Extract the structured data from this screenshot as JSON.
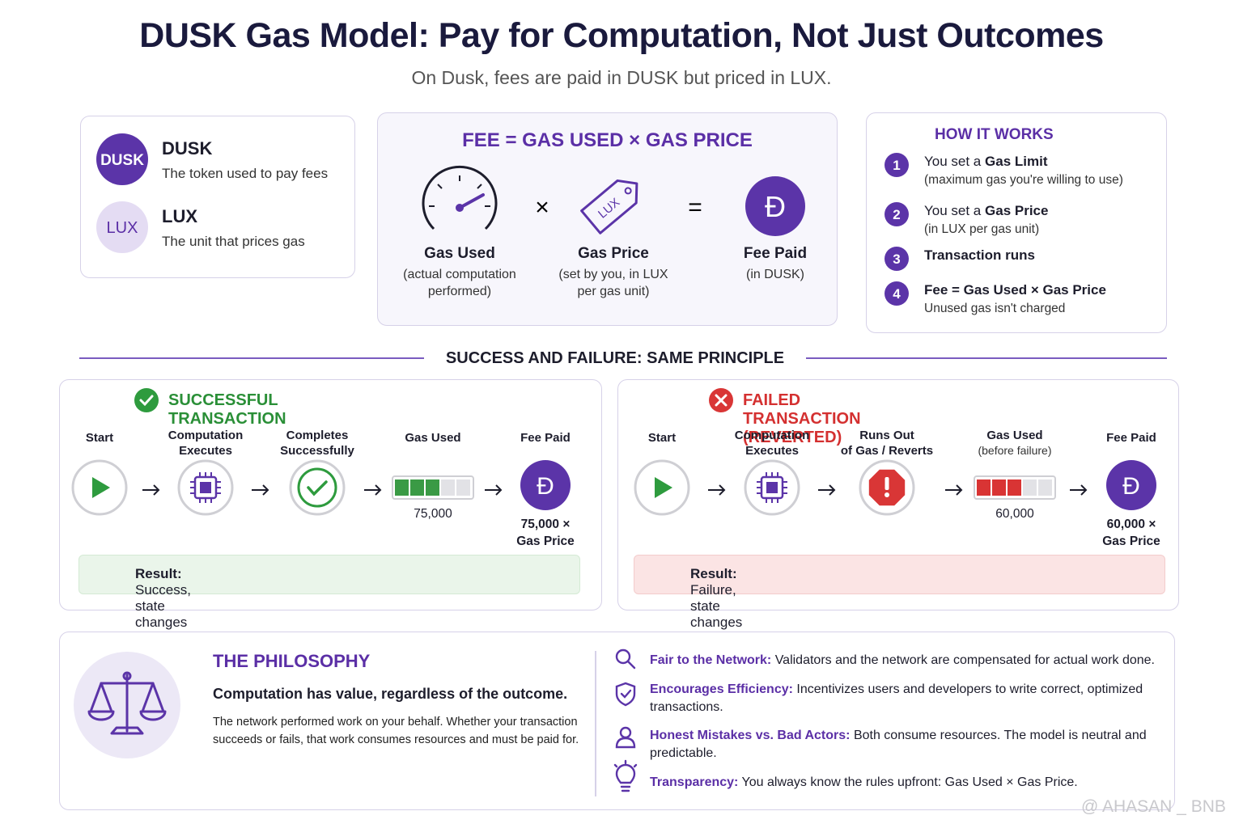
{
  "header": {
    "title": "DUSK Gas Model: Pay for Computation, Not Just Outcomes",
    "subtitle": "On Dusk, fees are paid in DUSK but priced in LUX."
  },
  "coin_symbol": "Đ",
  "tokens": [
    {
      "badge": "DUSK",
      "name": "DUSK",
      "desc": "The token used to pay fees"
    },
    {
      "badge": "LUX",
      "name": "LUX",
      "desc": "The unit that prices gas"
    }
  ],
  "formula": {
    "title": "FEE = GAS USED × GAS PRICE",
    "times": "×",
    "equals": "=",
    "tag_text": "LUX",
    "items": [
      {
        "label": "Gas Used",
        "note": [
          "(actual computation",
          "performed)"
        ]
      },
      {
        "label": "Gas Price",
        "note": [
          "(set by you, in LUX",
          "per gas unit)"
        ]
      },
      {
        "label": "Fee Paid",
        "note": [
          "(in DUSK)"
        ]
      }
    ]
  },
  "how": {
    "title": "HOW IT WORKS",
    "steps": [
      {
        "num": "1",
        "lead": "You set a",
        "bold": "Gas Limit",
        "note": "(maximum gas you're willing to use)"
      },
      {
        "num": "2",
        "lead": "You set a",
        "bold": "Gas Price",
        "note": "(in LUX per gas unit)"
      },
      {
        "num": "3",
        "bold": "Transaction runs"
      },
      {
        "num": "4",
        "bold": "Fee = Gas Used × Gas Price",
        "note": "Unused gas isn't charged"
      }
    ]
  },
  "section_title": "SUCCESS AND FAILURE: SAME PRINCIPLE",
  "success": {
    "title": "SUCCESSFUL TRANSACTION",
    "steps": [
      [
        "Start"
      ],
      [
        "Computation",
        "Executes"
      ],
      [
        "Completes",
        "Successfully"
      ],
      [
        "Gas Used"
      ],
      [
        "Fee Paid"
      ]
    ],
    "gas": "75,000",
    "fee": [
      "75,000 ×",
      "Gas Price"
    ],
    "result_label": "Result:",
    "result": "Success, state changes applied, fee paid for computation"
  },
  "failure": {
    "title": "FAILED TRANSACTION (REVERTED)",
    "steps": [
      [
        "Start"
      ],
      [
        "Computation",
        "Executes"
      ],
      [
        "Runs Out",
        "of Gas / Reverts"
      ],
      [
        "Gas Used",
        "(before failure)"
      ],
      [
        "Fee Paid"
      ]
    ],
    "gas": "60,000",
    "fee": [
      "60,000 ×",
      "Gas Price"
    ],
    "result_label": "Result:",
    "result": "Failure, state changes reverted, fee still paid for computation"
  },
  "philosophy": {
    "title": "THE PHILOSOPHY",
    "lead": "Computation has value, regardless of the outcome.",
    "body": "The network performed work on your behalf. Whether your transaction succeeds or fails, that work consumes resources and must be paid for.",
    "points": [
      {
        "bold": "Fair to the Network:",
        "text": "Validators and the network are compensated for actual work done."
      },
      {
        "bold": "Encourages Efficiency:",
        "text": "Incentivizes users and developers to write correct, optimized transactions."
      },
      {
        "bold": "Honest Mistakes vs. Bad Actors:",
        "text": "Both consume resources. The model is neutral and predictable."
      },
      {
        "bold": "Transparency:",
        "text": "You always know the rules upfront: Gas Used × Gas Price."
      }
    ]
  },
  "watermark": "@ AHASAN _ BNB"
}
